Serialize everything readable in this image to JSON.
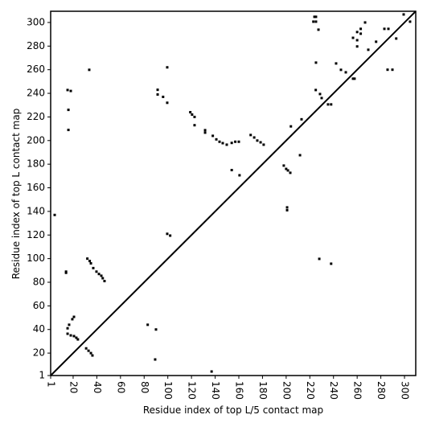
{
  "chart_data": {
    "type": "scatter",
    "xlabel": "Residue index of top L/5 contact map",
    "ylabel": "Residue index of top L contact map",
    "xlim": [
      1,
      309.5
    ],
    "ylim": [
      1,
      309.5
    ],
    "xticks": [
      1,
      20,
      40,
      60,
      80,
      100,
      120,
      140,
      160,
      180,
      200,
      220,
      240,
      260,
      280,
      300
    ],
    "yticks": [
      1,
      20,
      40,
      60,
      80,
      100,
      120,
      140,
      160,
      180,
      200,
      220,
      240,
      260,
      280,
      300
    ],
    "color": "#000000",
    "x": [
      4.4,
      15.3,
      18,
      16,
      16,
      33.6,
      14,
      14,
      32,
      34,
      35,
      37,
      39.7,
      41.8,
      43.8,
      45,
      46.5,
      15.3,
      16.6,
      19.3,
      20.7,
      15.3,
      18,
      20.7,
      22.7,
      24,
      31,
      33,
      35,
      36.3,
      83,
      90,
      89.3,
      137,
      91.4,
      91.4,
      96,
      99.5,
      99.5,
      99.5,
      102,
      119,
      120.5,
      122.6,
      122.6,
      131.5,
      131.5,
      138,
      141,
      143.7,
      146.4,
      149.8,
      154,
      157,
      160,
      154,
      160.6,
      170,
      173,
      175.6,
      178.4,
      181,
      198,
      200,
      201.5,
      203.5,
      200.8,
      200.8,
      204,
      211.7,
      213,
      223.9,
      225.2,
      223,
      225.2,
      227.3,
      225.2,
      225,
      228.6,
      230,
      235.4,
      238,
      228,
      238,
      242.2,
      246.3,
      250.4,
      256.5,
      257.8,
      256.5,
      260,
      260,
      260,
      263,
      263,
      266.7,
      269.4,
      276,
      283,
      286.4,
      285.7,
      289.8,
      293,
      299.3,
      304.7
    ],
    "values": [
      137,
      242.8,
      242,
      226,
      209,
      259.9,
      89,
      88,
      100,
      98,
      96,
      92,
      89,
      87,
      85.5,
      83.4,
      81,
      41,
      44,
      48.7,
      50.7,
      36.4,
      35,
      34.4,
      33,
      31.6,
      24,
      22,
      20,
      18,
      44,
      40,
      14.6,
      4.4,
      243,
      239,
      237,
      262,
      232,
      121,
      119.5,
      224,
      222,
      220,
      213,
      208.8,
      206.7,
      204,
      201,
      199,
      197.8,
      196.5,
      198,
      199,
      199,
      175,
      170.6,
      204.7,
      202.6,
      200,
      198.5,
      196.5,
      178.8,
      176,
      174.7,
      172.7,
      143.4,
      141,
      212,
      187.6,
      218,
      304.8,
      304.8,
      300.7,
      300.7,
      293.9,
      266,
      242.8,
      239.4,
      236,
      230.6,
      230.6,
      99.8,
      95.7,
      265.3,
      259.9,
      257.8,
      287,
      252.4,
      252.4,
      291.9,
      285,
      279.7,
      294.6,
      290.5,
      300,
      276.9,
      283.7,
      294.6,
      294.6,
      260,
      260,
      286.4,
      306.8,
      300.7
    ]
  }
}
